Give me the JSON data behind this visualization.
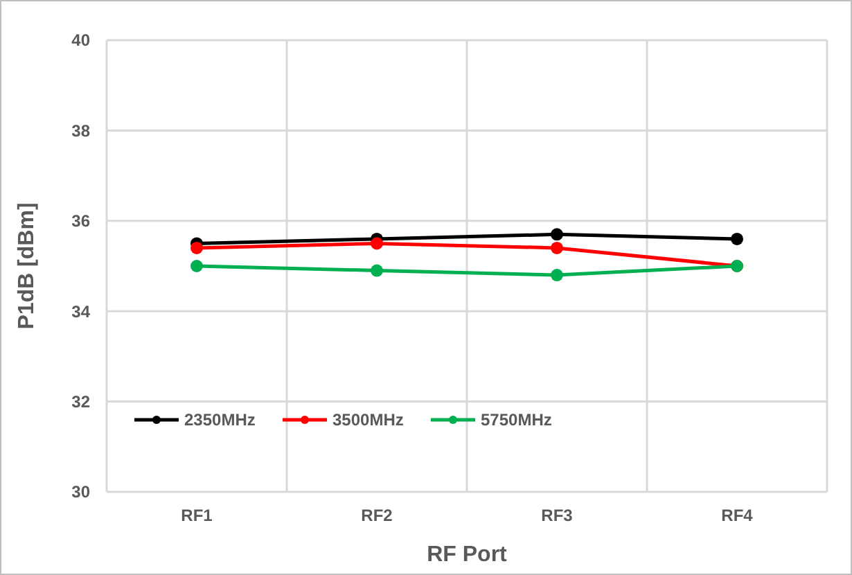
{
  "chart_data": {
    "type": "line",
    "xlabel": "RF Port",
    "ylabel": "P1dB [dBm]",
    "categories": [
      "RF1",
      "RF2",
      "RF3",
      "RF4"
    ],
    "ylim": [
      30,
      40
    ],
    "yticks": [
      30,
      32,
      34,
      36,
      38,
      40
    ],
    "grid": true,
    "legend": "bottom left",
    "marker": "circle",
    "series": [
      {
        "name": "2350MHz",
        "color": "#000000",
        "values": [
          35.5,
          35.6,
          35.7,
          35.6
        ]
      },
      {
        "name": "3500MHz",
        "color": "#ff0000",
        "values": [
          35.4,
          35.5,
          35.4,
          35.0
        ]
      },
      {
        "name": "5750MHz",
        "color": "#00b050",
        "values": [
          35.0,
          34.9,
          34.8,
          35.0
        ]
      }
    ]
  }
}
